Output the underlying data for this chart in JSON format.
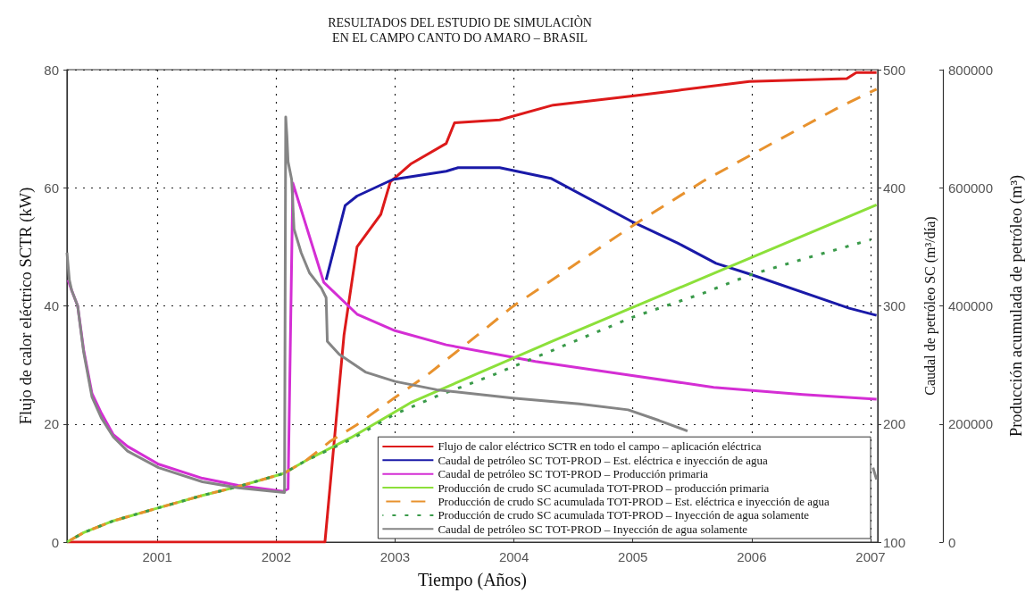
{
  "chart_data": {
    "type": "line",
    "title": "RESULTADOS DEL ESTUDIO DE SIMULACIÒN",
    "subtitle": "EN EL CAMPO CANTO DO AMARO – BRASIL",
    "xlabel": "Tiempo (Años)",
    "ylabel": "Flujo de calor eléctrico SCTR (kW)",
    "y2label": "Caudal de petróleo SC (m³/día)",
    "y3label": "Producción acumulada de petróleo (m³)",
    "xlim": [
      2000.24,
      2007.06
    ],
    "xticks": [
      2001,
      2002,
      2003,
      2004,
      2005,
      2006,
      2007
    ],
    "ylim": [
      0,
      80
    ],
    "yticks": [
      0,
      20,
      40,
      60,
      80
    ],
    "y2lim": [
      100,
      500
    ],
    "y2ticks": [
      100,
      200,
      300,
      400,
      500
    ],
    "y3lim": [
      0,
      800000
    ],
    "y3ticks": [
      0,
      200000,
      400000,
      600000,
      800000
    ],
    "grid": true,
    "legend": "bottom right",
    "marker": "none",
    "series": [
      {
        "name": "Flujo de calor eléctrico SCTR en todo el campo – aplicación eléctrica",
        "color": "#dd1a1a",
        "x": [
          2000.24,
          2002.41,
          2002.57,
          2002.68,
          2002.88,
          2002.96,
          2003.13,
          2003.43,
          2003.5,
          2003.88,
          2004.33,
          2004.98,
          2005.38,
          2005.98,
          2006.8,
          2006.88,
          2007.05
        ],
        "values": [
          0,
          0,
          35,
          50,
          55.5,
          61,
          64,
          67.5,
          71,
          71.5,
          74,
          75.5,
          76.5,
          78,
          78.5,
          79.5,
          79.5
        ]
      },
      {
        "name": "Caudal de petróleo SC TOT-PROD – Est. eléctrica e inyección de agua",
        "color": "#1a1aa8",
        "axis": "y2",
        "x": [
          2002.42,
          2002.58,
          2002.68,
          2002.98,
          2003.43,
          2003.53,
          2003.88,
          2004.31,
          2004.98,
          2005.38,
          2005.7,
          2005.98,
          2006.82,
          2007.05
        ],
        "values": [
          322,
          385,
          393,
          407,
          414,
          417,
          417,
          408,
          372,
          353,
          336,
          327,
          298,
          292
        ]
      },
      {
        "name": "Caudal de petróleo SC TOT-PROD – Producción primaria",
        "color": "#d42ed4",
        "axis": "y2",
        "x": [
          2000.25,
          2000.28,
          2000.33,
          2000.38,
          2000.45,
          2000.53,
          2000.63,
          2000.75,
          2001.01,
          2001.38,
          2001.68,
          2002.06,
          2002.1,
          2002.14,
          2002.4,
          2002.68,
          2003.0,
          2003.43,
          2004.18,
          2004.93,
          2005.68,
          2006.43,
          2007.05
        ],
        "values": [
          322,
          313,
          300,
          263,
          226,
          209,
          191,
          181,
          166,
          154,
          148,
          143,
          145,
          404,
          320,
          293,
          279,
          267,
          253,
          242,
          231,
          225,
          221
        ]
      },
      {
        "name": "Producción de crudo SC acumulada TOT-PROD – producción primaria",
        "color": "#8ce03a",
        "axis": "y3",
        "x": [
          2000.24,
          2000.38,
          2000.63,
          2001.01,
          2001.38,
          2001.68,
          2002.06,
          2002.25,
          2002.63,
          2003.13,
          2004.33,
          2005.68,
          2007.05
        ],
        "values": [
          0,
          16000,
          36000,
          58000,
          79000,
          94000,
          116000,
          138000,
          177000,
          236000,
          341000,
          455000,
          571000
        ]
      },
      {
        "name": "Producción de crudo SC acumulada TOT-PROD – Est. eléctrica e inyección de agua",
        "color": "#e8922e",
        "axis": "y3",
        "line_style": "dashed",
        "x": [
          2000.24,
          2000.38,
          2000.63,
          2001.01,
          2001.38,
          2001.68,
          2002.06,
          2002.25,
          2002.45,
          2002.68,
          2003.0,
          2003.29,
          2003.74,
          2003.99,
          2004.49,
          2005.03,
          2005.59,
          2006.17,
          2006.75,
          2007.05
        ],
        "values": [
          0,
          16000,
          36000,
          58000,
          79000,
          94000,
          116000,
          138000,
          170000,
          199000,
          245000,
          286000,
          358000,
          399000,
          467000,
          540000,
          611000,
          675000,
          738000,
          767000
        ]
      },
      {
        "name": "Producción de crudo SC acumulada TOT-PROD – Inyección de agua solamente",
        "color": "#3a9a4a",
        "axis": "y3",
        "line_style": "dotted",
        "x": [
          2000.24,
          2000.38,
          2000.63,
          2001.01,
          2001.38,
          2001.68,
          2002.06,
          2002.25,
          2002.63,
          2003.0,
          2003.35,
          2003.8,
          2005.0,
          2005.6,
          2005.98,
          2006.48,
          2007.0
        ],
        "values": [
          0,
          16000,
          36000,
          58000,
          79000,
          94000,
          116000,
          138000,
          174000,
          217000,
          247000,
          281000,
          381000,
          422000,
          452000,
          482000,
          512000
        ]
      },
      {
        "name": "Caudal de petróleo SC TOT-PROD – Inyección de agua solamente",
        "color": "#858585",
        "axis": "y2",
        "x": [
          2000.24,
          2000.26,
          2000.28,
          2000.33,
          2000.38,
          2000.45,
          2000.53,
          2000.63,
          2000.75,
          2001.01,
          2001.38,
          2001.68,
          2002.07,
          2002.08,
          2002.09,
          2002.1,
          2002.13,
          2002.15,
          2002.21,
          2002.28,
          2002.38,
          2002.42,
          2002.43,
          2002.53,
          2002.75,
          2003.0,
          2003.35,
          2003.99,
          2004.55,
          2004.96,
          2005.22,
          2005.46,
          2006.0,
          2007.02,
          2007.05
        ],
        "values": [
          345,
          322,
          313,
          300,
          261,
          223,
          205,
          189,
          177,
          163,
          151,
          146,
          142,
          460,
          444,
          422,
          407,
          365,
          345,
          328,
          315,
          307,
          270,
          259,
          244,
          236,
          229,
          222,
          217,
          212,
          203,
          194,
          null,
          163,
          153
        ]
      }
    ]
  }
}
